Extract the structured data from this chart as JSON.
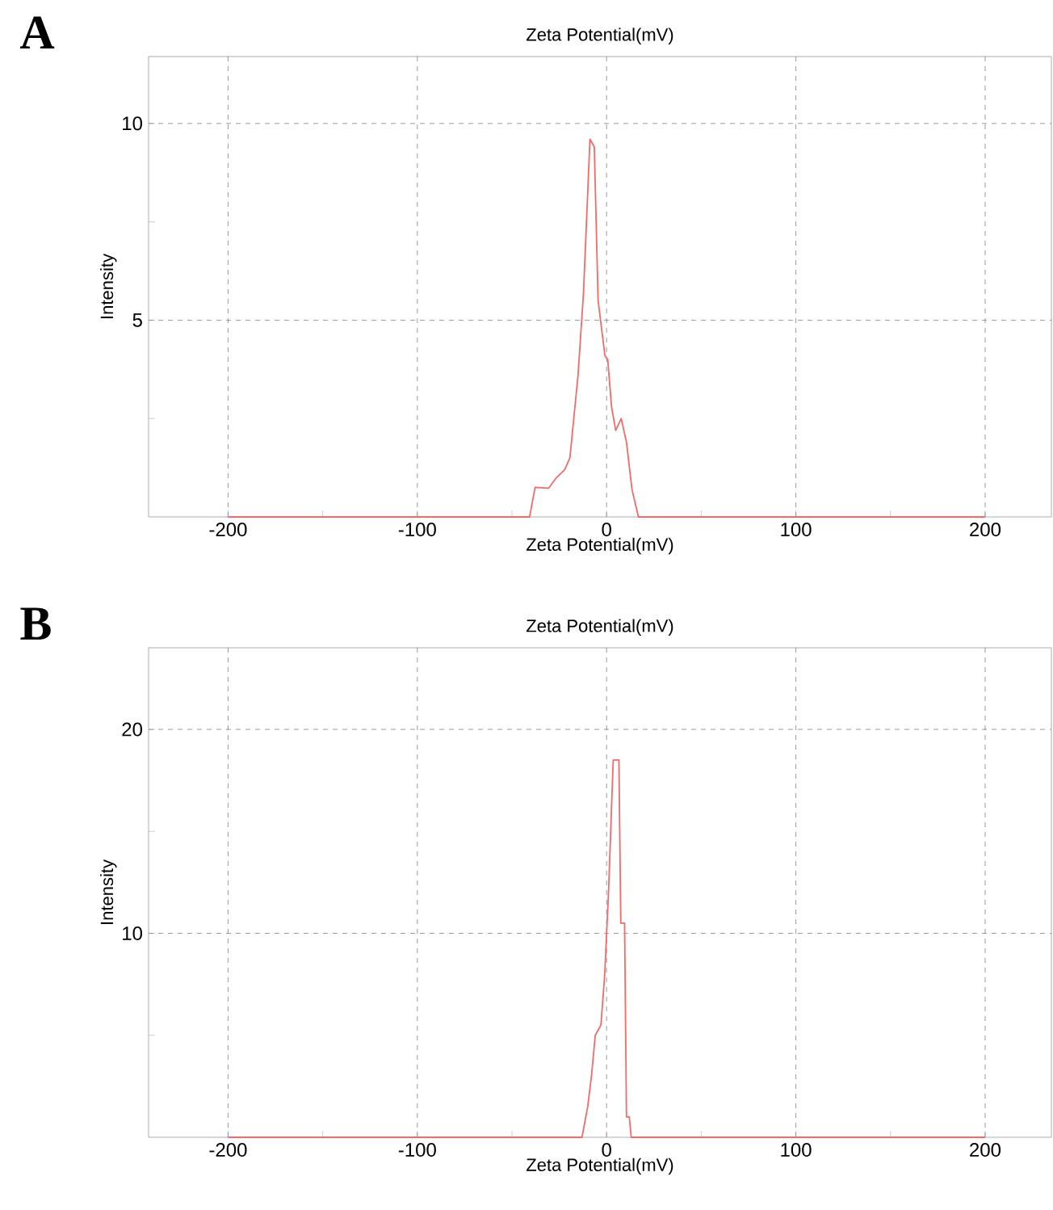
{
  "chart_data": [
    {
      "type": "line",
      "title": "Zeta Potential(mV)",
      "xlabel": "Zeta Potential(mV)",
      "ylabel": "Intensity",
      "annotations": [
        "A"
      ],
      "x": [
        -200,
        -40.7,
        -37.8,
        -30.7,
        -26.5,
        -22.2,
        -19.4,
        -15.1,
        -12.2,
        -8.8,
        -6.5,
        -4.5,
        -0.9,
        0.6,
        2.6,
        4.8,
        7.7,
        10.5,
        13.4,
        16.8,
        200
      ],
      "series": [
        {
          "color": "#f26b6b",
          "values": [
            0,
            0,
            0.75,
            0.73,
            1.0,
            1.2,
            1.5,
            3.6,
            5.7,
            9.6,
            9.4,
            5.5,
            4.1,
            4.0,
            2.8,
            2.2,
            2.5,
            1.9,
            0.7,
            0,
            0
          ]
        }
      ],
      "xlim": [
        -242,
        235
      ],
      "ylim": [
        0,
        11.7
      ],
      "xticks": [
        -200,
        {
          "value": -150,
          "label": null
        },
        -100,
        {
          "value": -50,
          "label": null
        },
        0,
        {
          "value": 50,
          "label": null
        },
        100,
        {
          "value": 150,
          "label": null
        },
        200
      ],
      "yticks": [
        {
          "value": 2.5,
          "label": null
        },
        5,
        {
          "value": 7.5,
          "label": null
        },
        10
      ],
      "grid": true,
      "line_style": "solid",
      "marker": "none"
    },
    {
      "type": "line",
      "title": "Zeta Potential(mV)",
      "xlabel": "Zeta Potential(mV)",
      "ylabel": "Intensity",
      "annotations": [
        "B"
      ],
      "x": [
        -200,
        -13,
        -10,
        -8,
        -6,
        -3,
        -1,
        1,
        3.5,
        6.5,
        7.5,
        9.5,
        10.5,
        12,
        13,
        200
      ],
      "series": [
        {
          "color": "#f26b6b",
          "values": [
            0,
            0,
            1.5,
            3,
            5,
            5.5,
            8,
            12,
            18.5,
            18.5,
            10.5,
            10.5,
            1,
            1,
            0,
            0
          ]
        }
      ],
      "xlim": [
        -242,
        235
      ],
      "ylim": [
        0,
        24
      ],
      "xticks": [
        -200,
        {
          "value": -150,
          "label": null
        },
        -100,
        {
          "value": -50,
          "label": null
        },
        0,
        {
          "value": 50,
          "label": null
        },
        100,
        {
          "value": 150,
          "label": null
        },
        200
      ],
      "yticks": [
        {
          "value": 5,
          "label": null
        },
        10,
        {
          "value": 15,
          "label": null
        },
        20
      ],
      "grid": true,
      "line_style": "solid",
      "marker": "none"
    }
  ]
}
